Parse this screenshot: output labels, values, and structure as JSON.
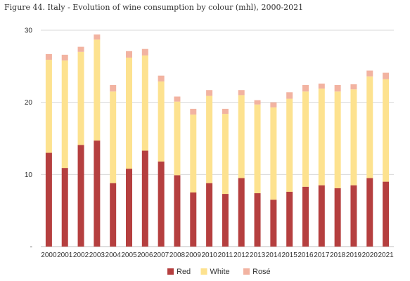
{
  "chart_data": {
    "type": "bar",
    "stacked": true,
    "title": "Figure 44. Italy - Evolution of wine consumption by colour (mhl), 2000-2021",
    "xlabel": "",
    "ylabel": "",
    "ylim": [
      0,
      30
    ],
    "y_ticks": [
      {
        "value": 0,
        "label": "-"
      },
      {
        "value": 10,
        "label": "10"
      },
      {
        "value": 20,
        "label": "20"
      },
      {
        "value": 30,
        "label": "30"
      }
    ],
    "grid": true,
    "legend_position": "bottom",
    "categories": [
      "2000",
      "2001",
      "2002",
      "2003",
      "2004",
      "2005",
      "2006",
      "2007",
      "2008",
      "2009",
      "2010",
      "2011",
      "2012",
      "2013",
      "2014",
      "2015",
      "2016",
      "2017",
      "2018",
      "2019",
      "2020",
      "2021"
    ],
    "series": [
      {
        "name": "Red",
        "color": "#b53f3f",
        "values": [
          13.0,
          10.9,
          14.1,
          14.7,
          8.8,
          10.8,
          13.3,
          11.8,
          9.9,
          7.5,
          8.8,
          7.3,
          9.5,
          7.4,
          6.5,
          7.6,
          8.3,
          8.5,
          8.1,
          8.5,
          9.5,
          9.0
        ]
      },
      {
        "name": "White",
        "color": "#fde28f",
        "values": [
          12.9,
          14.9,
          12.9,
          14.0,
          12.7,
          15.4,
          13.2,
          11.1,
          10.2,
          10.8,
          12.1,
          11.1,
          11.5,
          12.3,
          12.8,
          12.9,
          13.2,
          13.4,
          13.4,
          13.3,
          14.1,
          14.2
        ]
      },
      {
        "name": "Rosé",
        "color": "#f2b3a1",
        "values": [
          0.8,
          0.8,
          0.7,
          0.7,
          0.9,
          0.9,
          0.9,
          0.8,
          0.7,
          0.8,
          0.8,
          0.7,
          0.7,
          0.6,
          0.7,
          0.9,
          0.9,
          0.7,
          0.9,
          0.7,
          0.8,
          0.9
        ]
      }
    ]
  }
}
